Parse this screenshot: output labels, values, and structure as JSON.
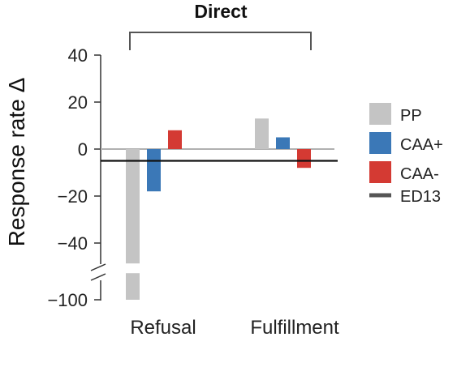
{
  "chart_data": {
    "type": "bar",
    "title": "Direct",
    "ylabel": "Response rate Δ",
    "xlabel": "",
    "categories": [
      "Refusal",
      "Fulfillment"
    ],
    "series": [
      {
        "name": "PP",
        "color": "#c4c4c4",
        "values": [
          -100,
          13
        ]
      },
      {
        "name": "CAA+",
        "color": "#3b78b7",
        "values": [
          -18,
          5
        ]
      },
      {
        "name": "CAA-",
        "color": "#d43a33",
        "values": [
          8,
          -8
        ]
      }
    ],
    "reference_line": {
      "name": "ED13",
      "value": -5,
      "color": "#111111"
    },
    "yticks": [
      40,
      20,
      0,
      -20,
      -40,
      -100
    ],
    "ytick_labels": [
      "40",
      "20",
      "0",
      "−20",
      "−40",
      "−100"
    ],
    "ylim": [
      -100,
      40
    ],
    "axis_break": {
      "from": -48,
      "to": -100
    },
    "grid": false,
    "legend": "right",
    "zero_line_color": "#b0b0b0"
  }
}
